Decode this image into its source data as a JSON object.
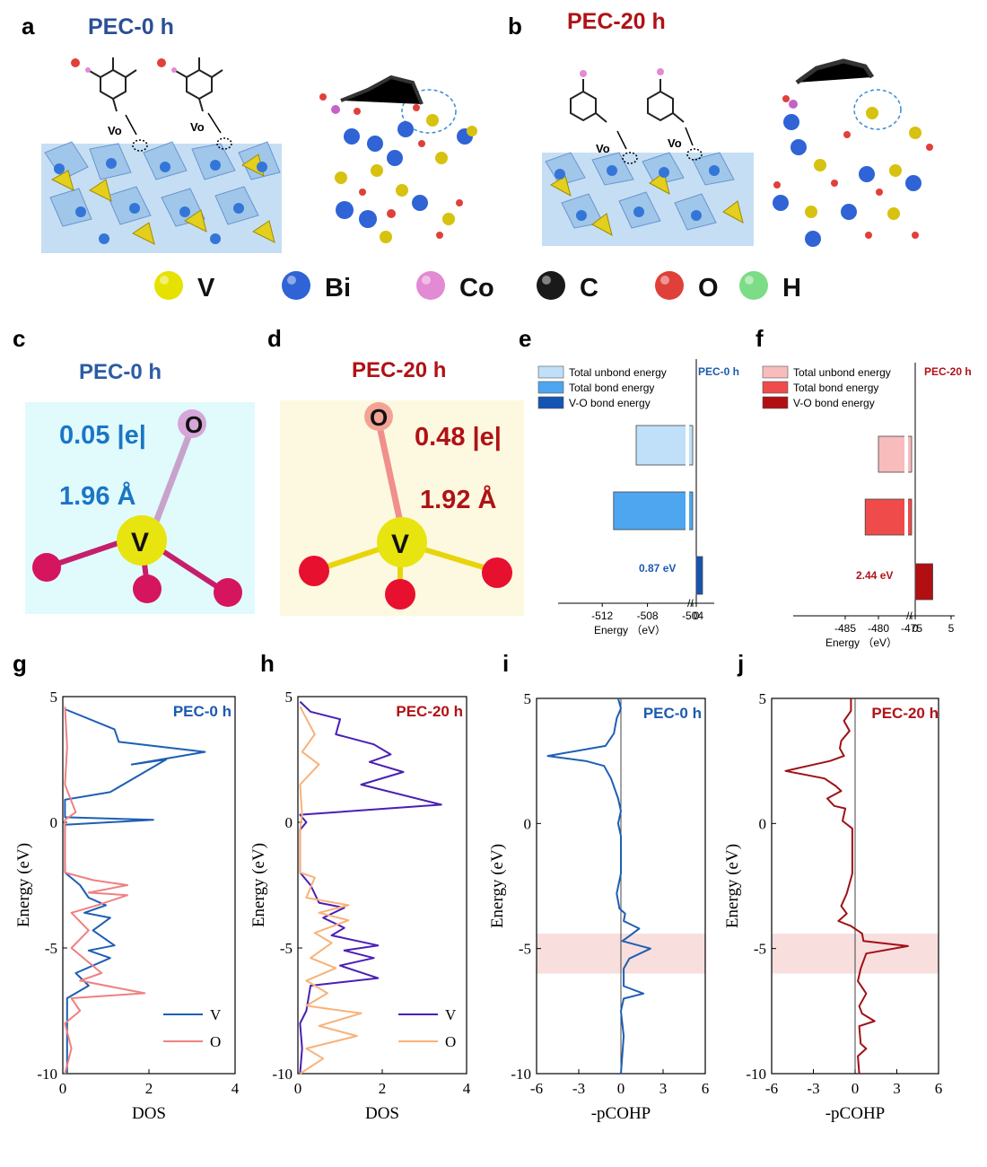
{
  "panels": {
    "a": "a",
    "b": "b",
    "c": "c",
    "d": "d",
    "e": "e",
    "f": "f",
    "g": "g",
    "h": "h",
    "i": "i",
    "j": "j"
  },
  "titles": {
    "a": "PEC-0 h",
    "b": "PEC-20 h",
    "c": "PEC-0 h",
    "d": "PEC-20 h"
  },
  "vacancy_label": "Vo",
  "legend": [
    {
      "label": "V",
      "color": "#e6e200"
    },
    {
      "label": "Bi",
      "color": "#2f63d6"
    },
    {
      "label": "Co",
      "color": "#e38ad4"
    },
    {
      "label": "C",
      "color": "#1a1a1a"
    },
    {
      "label": "O",
      "color": "#e0403a"
    },
    {
      "label": "H",
      "color": "#7ddc86"
    }
  ],
  "bonds": {
    "c": {
      "charge": "0.05 |e|",
      "length": "1.96 Å",
      "atom_top": "O",
      "atom_center": "V",
      "bg": "#e1fafc"
    },
    "d": {
      "charge": "0.48 |e|",
      "length": "1.92 Å",
      "atom_top": "O",
      "atom_center": "V",
      "bg": "#fdf9e0"
    }
  },
  "chart_data": [
    {
      "panel": "e",
      "type": "bar",
      "orientation": "horizontal",
      "title": "PEC-0 h",
      "categories": [
        "Total unbond energy",
        "Total bond energy",
        "V-O bond energy"
      ],
      "values": [
        -509,
        -511,
        0.87
      ],
      "annotation": "0.87 eV",
      "colors": [
        "#bfe0f8",
        "#4da6ef",
        "#1455b3"
      ],
      "xlabel": "Energy （eV）",
      "xticks": [
        "-512",
        "-508",
        "-504",
        "0"
      ],
      "axis_break": true
    },
    {
      "panel": "f",
      "type": "bar",
      "orientation": "horizontal",
      "title": "PEC-20 h",
      "categories": [
        "Total unbond energy",
        "Total bond energy",
        "V-O bond energy"
      ],
      "values": [
        -480,
        -482,
        2.44
      ],
      "annotation": "2.44 eV",
      "colors": [
        "#f8bcbc",
        "#ef4b4b",
        "#b10f12"
      ],
      "xlabel": "Energy （eV）",
      "xticks": [
        "-485",
        "-480",
        "-475",
        "0",
        "5"
      ],
      "axis_break": true
    },
    {
      "panel": "g",
      "type": "line",
      "title": "PEC-0 h",
      "xlabel": "DOS",
      "ylabel": "Energy (eV)",
      "xlim": [
        0,
        4
      ],
      "ylim": [
        -10,
        5
      ],
      "xticks": [
        0,
        2,
        4
      ],
      "yticks": [
        5,
        0,
        -5,
        -10
      ],
      "series": [
        {
          "name": "V",
          "color": "#1d5fb4",
          "points": [
            [
              0.05,
              4.5
            ],
            [
              1.2,
              3.7
            ],
            [
              1.3,
              3.2
            ],
            [
              3.3,
              2.8
            ],
            [
              1.6,
              2.3
            ],
            [
              2.4,
              2.5
            ],
            [
              1.1,
              1.2
            ],
            [
              0.05,
              0.9
            ],
            [
              0.05,
              0.2
            ],
            [
              2.1,
              0.1
            ],
            [
              0.05,
              -0.1
            ],
            [
              0.05,
              -2
            ],
            [
              0.4,
              -2.5
            ],
            [
              0.6,
              -3
            ],
            [
              1.0,
              -3.3
            ],
            [
              0.5,
              -3.6
            ],
            [
              1.1,
              -3.8
            ],
            [
              0.7,
              -4.3
            ],
            [
              1.2,
              -4.9
            ],
            [
              0.6,
              -5.1
            ],
            [
              1.1,
              -5.4
            ],
            [
              0.3,
              -6
            ],
            [
              0.6,
              -6.5
            ],
            [
              0.1,
              -7
            ],
            [
              0.1,
              -10
            ]
          ]
        },
        {
          "name": "O",
          "color": "#f08080",
          "points": [
            [
              0.05,
              4.6
            ],
            [
              0.1,
              3
            ],
            [
              0.05,
              1.5
            ],
            [
              0.3,
              0.4
            ],
            [
              0.05,
              0.1
            ],
            [
              0.05,
              -2
            ],
            [
              0.7,
              -2.3
            ],
            [
              1.5,
              -2.5
            ],
            [
              0.6,
              -2.8
            ],
            [
              1.5,
              -2.9
            ],
            [
              0.8,
              -3.3
            ],
            [
              0.2,
              -3.6
            ],
            [
              0.6,
              -4.3
            ],
            [
              0.2,
              -5
            ],
            [
              0.9,
              -6
            ],
            [
              0.4,
              -6.3
            ],
            [
              1.9,
              -6.8
            ],
            [
              0.2,
              -7
            ],
            [
              0.4,
              -7.5
            ],
            [
              0.05,
              -8
            ],
            [
              0.2,
              -9
            ],
            [
              0.05,
              -10
            ]
          ]
        }
      ]
    },
    {
      "panel": "h",
      "type": "line",
      "title": "PEC-20 h",
      "xlabel": "DOS",
      "ylabel": "Energy (eV)",
      "xlim": [
        0,
        4
      ],
      "ylim": [
        -10,
        5
      ],
      "xticks": [
        0,
        2,
        4
      ],
      "yticks": [
        5,
        0,
        -5,
        -10
      ],
      "series": [
        {
          "name": "V",
          "color": "#4a1fb4",
          "points": [
            [
              0.05,
              4.8
            ],
            [
              0.3,
              4.4
            ],
            [
              1.0,
              4.1
            ],
            [
              0.9,
              3.5
            ],
            [
              1.8,
              3.1
            ],
            [
              2.2,
              2.7
            ],
            [
              1.7,
              2.4
            ],
            [
              2.5,
              2
            ],
            [
              1.5,
              1.5
            ],
            [
              3.4,
              0.7
            ],
            [
              0.05,
              0.3
            ],
            [
              0.2,
              0
            ],
            [
              0.05,
              -0.3
            ],
            [
              0.05,
              -2
            ],
            [
              0.3,
              -2.5
            ],
            [
              0.5,
              -3.2
            ],
            [
              1.1,
              -3.4
            ],
            [
              0.6,
              -3.8
            ],
            [
              1.1,
              -4.2
            ],
            [
              0.8,
              -4.5
            ],
            [
              1.9,
              -4.9
            ],
            [
              1.1,
              -5.1
            ],
            [
              1.8,
              -5.4
            ],
            [
              1.0,
              -5.7
            ],
            [
              1.9,
              -6.2
            ],
            [
              0.3,
              -6.5
            ],
            [
              0.2,
              -7.5
            ],
            [
              0.05,
              -8
            ],
            [
              0.1,
              -9
            ],
            [
              0.05,
              -10
            ]
          ]
        },
        {
          "name": "O",
          "color": "#f8b27a",
          "points": [
            [
              0.05,
              4.6
            ],
            [
              0.4,
              3.5
            ],
            [
              0.1,
              2.8
            ],
            [
              0.5,
              2.3
            ],
            [
              0.05,
              1.5
            ],
            [
              0.1,
              0.3
            ],
            [
              0.05,
              -0.3
            ],
            [
              0.05,
              -2
            ],
            [
              0.4,
              -2.2
            ],
            [
              0.2,
              -3
            ],
            [
              1.2,
              -3.3
            ],
            [
              0.5,
              -3.6
            ],
            [
              1.2,
              -3.9
            ],
            [
              0.4,
              -4.4
            ],
            [
              0.8,
              -4.8
            ],
            [
              0.3,
              -5.4
            ],
            [
              0.9,
              -5.8
            ],
            [
              0.2,
              -6.3
            ],
            [
              0.7,
              -6.8
            ],
            [
              0.2,
              -7.3
            ],
            [
              1.5,
              -7.6
            ],
            [
              0.5,
              -8.1
            ],
            [
              1.4,
              -8.5
            ],
            [
              0.2,
              -9
            ],
            [
              0.6,
              -9.4
            ],
            [
              0.05,
              -10
            ]
          ]
        }
      ]
    },
    {
      "panel": "i",
      "type": "line",
      "title": "PEC-0 h",
      "xlabel": "-pCOHP",
      "ylabel": "Energy (eV)",
      "xlim": [
        -6,
        6
      ],
      "ylim": [
        -10,
        5
      ],
      "xticks": [
        -6,
        -3,
        0,
        3,
        6
      ],
      "yticks": [
        5,
        0,
        -5,
        -10
      ],
      "highlight": {
        "ymin": -6.0,
        "ymax": -4.4,
        "color": "#f9dede"
      },
      "series": [
        {
          "name": "",
          "color": "#1d5fb4",
          "points": [
            [
              -0.2,
              5
            ],
            [
              0,
              4.6
            ],
            [
              -0.3,
              4.2
            ],
            [
              -0.5,
              3.6
            ],
            [
              -1.1,
              3.1
            ],
            [
              -5.2,
              2.7
            ],
            [
              -2.5,
              2.5
            ],
            [
              -1.2,
              2.3
            ],
            [
              -0.7,
              1.8
            ],
            [
              -0.2,
              1
            ],
            [
              0,
              0.5
            ],
            [
              -0.2,
              0
            ],
            [
              0,
              -0.5
            ],
            [
              0,
              -2
            ],
            [
              -0.3,
              -2.8
            ],
            [
              -0.1,
              -3.4
            ],
            [
              0.3,
              -3.6
            ],
            [
              0.2,
              -3.9
            ],
            [
              1.3,
              -4.2
            ],
            [
              0.6,
              -4.5
            ],
            [
              0.1,
              -4.7
            ],
            [
              2.1,
              -5
            ],
            [
              0.6,
              -5.4
            ],
            [
              0.2,
              -5.8
            ],
            [
              0.2,
              -6.5
            ],
            [
              1.6,
              -6.8
            ],
            [
              0.2,
              -7
            ],
            [
              0,
              -7.5
            ],
            [
              0.2,
              -8.5
            ],
            [
              0,
              -10
            ]
          ]
        }
      ]
    },
    {
      "panel": "j",
      "type": "line",
      "title": "PEC-20 h",
      "xlabel": "-pCOHP",
      "ylabel": "Energy (eV)",
      "xlim": [
        -6,
        6
      ],
      "ylim": [
        -10,
        5
      ],
      "xticks": [
        -6,
        -3,
        0,
        3,
        6
      ],
      "yticks": [
        5,
        0,
        -5,
        -10
      ],
      "highlight": {
        "ymin": -6.0,
        "ymax": -4.4,
        "color": "#f9dede"
      },
      "series": [
        {
          "name": "",
          "color": "#a01016",
          "points": [
            [
              -0.3,
              5
            ],
            [
              -0.3,
              4.5
            ],
            [
              -0.8,
              4.1
            ],
            [
              -0.4,
              3.7
            ],
            [
              -1.0,
              3.3
            ],
            [
              -1.1,
              3
            ],
            [
              -0.8,
              2.7
            ],
            [
              -1.8,
              2.5
            ],
            [
              -5.0,
              2.1
            ],
            [
              -2.2,
              1.8
            ],
            [
              -1.4,
              1.5
            ],
            [
              -1.0,
              1.3
            ],
            [
              -2.0,
              1
            ],
            [
              -1.5,
              0.7
            ],
            [
              -0.7,
              0.6
            ],
            [
              -0.9,
              0.1
            ],
            [
              -0.2,
              -0.2
            ],
            [
              -0.2,
              -2
            ],
            [
              -0.6,
              -2.8
            ],
            [
              -1.0,
              -3.3
            ],
            [
              -0.6,
              -3.6
            ],
            [
              -1.2,
              -3.9
            ],
            [
              -0.3,
              -4.1
            ],
            [
              0.5,
              -4.4
            ],
            [
              0.6,
              -4.7
            ],
            [
              3.8,
              -4.9
            ],
            [
              0.8,
              -5.2
            ],
            [
              0.4,
              -5.8
            ],
            [
              0.2,
              -6.3
            ],
            [
              0.8,
              -6.8
            ],
            [
              0.3,
              -7.3
            ],
            [
              0.5,
              -7.6
            ],
            [
              1.4,
              -7.9
            ],
            [
              0.3,
              -8.1
            ],
            [
              0.4,
              -8.8
            ],
            [
              0.8,
              -9
            ],
            [
              0.2,
              -9.3
            ],
            [
              0.3,
              -10
            ]
          ]
        }
      ]
    }
  ]
}
